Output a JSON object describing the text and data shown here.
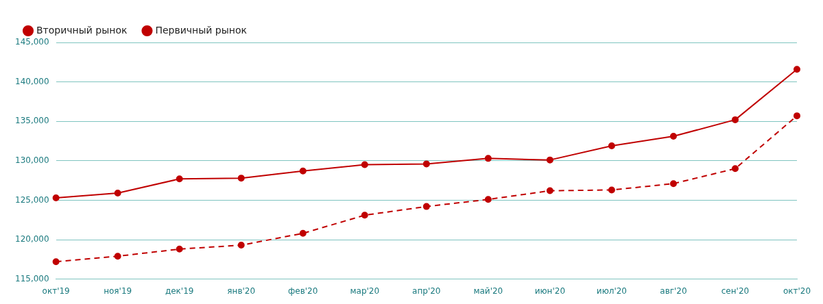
{
  "chart_data": {
    "type": "line",
    "categories": [
      "окт'19",
      "ноя'19",
      "дек'19",
      "янв'20",
      "фев'20",
      "мар'20",
      "апр'20",
      "май'20",
      "июн'20",
      "июл'20",
      "авг'20",
      "сен'20",
      "окт'20"
    ],
    "series": [
      {
        "name": "Вторичный рынок",
        "color": "#c00000",
        "line_style": "solid",
        "values": [
          125300,
          125900,
          127700,
          127800,
          128700,
          129500,
          129600,
          130300,
          130100,
          131900,
          133100,
          135200,
          141600
        ]
      },
      {
        "name": "Первичный рынок",
        "color": "#c00000",
        "line_style": "dashed",
        "values": [
          117200,
          117900,
          118800,
          119300,
          120800,
          123100,
          124200,
          125100,
          126200,
          126300,
          127100,
          129000,
          135700
        ]
      }
    ],
    "ylim": [
      115000,
      145000
    ],
    "yticks": [
      {
        "value": 115000,
        "label": "115,000"
      },
      {
        "value": 120000,
        "label": "120,000"
      },
      {
        "value": 125000,
        "label": "125,000"
      },
      {
        "value": 130000,
        "label": "130,000"
      },
      {
        "value": 135000,
        "label": "135,000"
      },
      {
        "value": 140000,
        "label": "140,000"
      },
      {
        "value": 145000,
        "label": "145,000"
      }
    ],
    "grid": "y",
    "legend": "top left",
    "marker": "circle"
  }
}
